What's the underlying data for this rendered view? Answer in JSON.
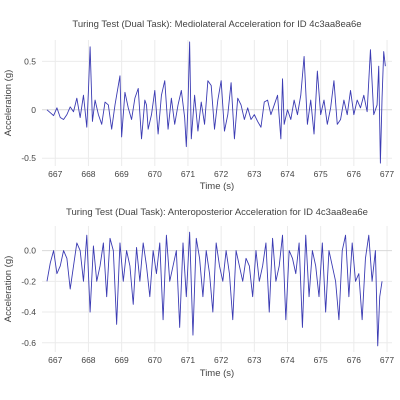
{
  "colors": {
    "line": "#3b3bb3",
    "grid": "#ebebeb",
    "text": "#444444"
  },
  "chart_data": [
    {
      "type": "line",
      "title": "Turing Test (Dual Task): Mediolateral Acceleration for ID 4c3aa8ea6e",
      "xlabel": "Time (s)",
      "ylabel": "Acceleration (g)",
      "xlim": [
        666.6,
        677.15
      ],
      "ylim": [
        -0.58,
        0.72
      ],
      "xticks": [
        667,
        668,
        669,
        670,
        671,
        672,
        673,
        674,
        675,
        676,
        677
      ],
      "yticks": [
        -0.5,
        0,
        0.5
      ],
      "grid": true,
      "legend": "none",
      "series": [
        {
          "x": [
            666.75,
            666.85,
            666.95,
            667.05,
            667.15,
            667.25,
            667.35,
            667.45,
            667.55,
            667.65,
            667.75,
            667.85,
            667.95,
            668.0,
            668.05,
            668.12,
            668.2,
            668.3,
            668.4,
            668.5,
            668.6,
            668.7,
            668.8,
            668.9,
            668.95,
            669.0,
            669.1,
            669.2,
            669.3,
            669.4,
            669.5,
            669.6,
            669.7,
            669.75,
            669.8,
            669.9,
            670.0,
            670.1,
            670.2,
            670.3,
            670.4,
            670.5,
            670.6,
            670.7,
            670.8,
            670.9,
            670.95,
            671.0,
            671.05,
            671.1,
            671.2,
            671.3,
            671.4,
            671.5,
            671.6,
            671.7,
            671.8,
            671.9,
            672.0,
            672.1,
            672.2,
            672.3,
            672.4,
            672.5,
            672.6,
            672.7,
            672.8,
            672.9,
            673.0,
            673.1,
            673.2,
            673.3,
            673.4,
            673.5,
            673.6,
            673.7,
            673.8,
            673.85,
            673.9,
            674.0,
            674.1,
            674.2,
            674.3,
            674.4,
            674.5,
            674.6,
            674.7,
            674.8,
            674.9,
            675.0,
            675.1,
            675.2,
            675.3,
            675.4,
            675.5,
            675.6,
            675.7,
            675.8,
            675.9,
            676.0,
            676.1,
            676.2,
            676.3,
            676.4,
            676.5,
            676.6,
            676.7,
            676.75,
            676.8,
            676.85,
            676.9,
            676.95
          ],
          "y": [
            0.0,
            -0.03,
            -0.06,
            0.02,
            -0.08,
            -0.1,
            -0.05,
            0.03,
            -0.02,
            0.12,
            -0.08,
            0.15,
            -0.18,
            0.2,
            0.65,
            -0.12,
            0.1,
            -0.05,
            -0.15,
            0.08,
            0.05,
            -0.2,
            0.05,
            0.25,
            0.35,
            -0.28,
            0.18,
            0.02,
            -0.1,
            0.12,
            0.22,
            -0.3,
            0.1,
            0.05,
            -0.2,
            -0.05,
            0.2,
            -0.25,
            0.15,
            0.3,
            -0.2,
            0.12,
            -0.15,
            0.05,
            0.2,
            -0.08,
            -0.38,
            0.05,
            0.7,
            -0.3,
            0.15,
            -0.22,
            0.08,
            -0.15,
            0.3,
            0.25,
            -0.2,
            0.1,
            0.3,
            -0.22,
            -0.05,
            0.28,
            -0.3,
            0.12,
            0.05,
            -0.1,
            0.02,
            -0.1,
            -0.05,
            -0.12,
            -0.18,
            0.08,
            0.1,
            -0.05,
            0.05,
            0.15,
            -0.3,
            0.32,
            -0.15,
            0.0,
            -0.1,
            0.1,
            -0.05,
            0.15,
            0.55,
            -0.15,
            0.1,
            -0.25,
            0.4,
            -0.05,
            0.1,
            -0.15,
            0.02,
            0.3,
            -0.15,
            -0.1,
            0.1,
            -0.05,
            0.2,
            -0.05,
            0.1,
            0.02,
            0.15,
            -0.02,
            0.62,
            -0.05,
            0.05,
            0.45,
            -0.55,
            0.12,
            0.6,
            0.45
          ]
        }
      ]
    },
    {
      "type": "line",
      "title": "Turing Test (Dual Task): Anteroposterior Acceleration for ID 4c3aa8ea6e",
      "xlabel": "Time (s)",
      "ylabel": "Acceleration (g)",
      "xlim": [
        666.6,
        677.15
      ],
      "ylim": [
        -0.66,
        0.16
      ],
      "xticks": [
        667,
        668,
        669,
        670,
        671,
        672,
        673,
        674,
        675,
        676,
        677
      ],
      "yticks": [
        -0.6,
        -0.4,
        -0.2,
        0.0
      ],
      "grid": true,
      "legend": "none",
      "series": [
        {
          "x": [
            666.75,
            666.85,
            666.95,
            667.05,
            667.15,
            667.25,
            667.35,
            667.45,
            667.55,
            667.65,
            667.75,
            667.85,
            667.95,
            668.05,
            668.15,
            668.25,
            668.35,
            668.45,
            668.55,
            668.65,
            668.75,
            668.85,
            668.95,
            669.05,
            669.15,
            669.25,
            669.35,
            669.45,
            669.55,
            669.65,
            669.75,
            669.85,
            669.95,
            670.05,
            670.15,
            670.25,
            670.35,
            670.45,
            670.55,
            670.65,
            670.75,
            670.85,
            670.95,
            671.05,
            671.15,
            671.25,
            671.35,
            671.45,
            671.55,
            671.65,
            671.75,
            671.85,
            671.95,
            672.05,
            672.15,
            672.25,
            672.35,
            672.45,
            672.55,
            672.65,
            672.75,
            672.85,
            672.95,
            673.05,
            673.15,
            673.25,
            673.35,
            673.45,
            673.55,
            673.65,
            673.75,
            673.85,
            673.95,
            674.05,
            674.15,
            674.25,
            674.35,
            674.45,
            674.55,
            674.65,
            674.75,
            674.85,
            674.95,
            675.05,
            675.15,
            675.25,
            675.35,
            675.45,
            675.55,
            675.65,
            675.75,
            675.85,
            675.95,
            676.05,
            676.15,
            676.25,
            676.35,
            676.45,
            676.55,
            676.65,
            676.72,
            676.78,
            676.85
          ],
          "y": [
            -0.2,
            -0.08,
            0.0,
            -0.15,
            -0.1,
            0.0,
            -0.05,
            -0.25,
            -0.1,
            0.05,
            0.0,
            -0.2,
            0.1,
            -0.4,
            0.03,
            -0.2,
            -0.1,
            0.05,
            -0.3,
            0.08,
            0.0,
            -0.48,
            0.05,
            -0.2,
            0.0,
            -0.1,
            -0.35,
            0.02,
            -0.2,
            0.05,
            -0.1,
            -0.3,
            0.0,
            -0.15,
            0.05,
            -0.45,
            0.1,
            -0.2,
            -0.1,
            0.0,
            -0.5,
            0.05,
            -0.3,
            0.12,
            -0.55,
            0.08,
            -0.05,
            -0.3,
            0.0,
            -0.15,
            -0.4,
            0.05,
            -0.1,
            -0.2,
            0.0,
            -0.15,
            -0.45,
            0.0,
            -0.1,
            -0.2,
            -0.05,
            -0.1,
            -0.3,
            0.0,
            -0.2,
            -0.1,
            0.05,
            -0.4,
            0.08,
            -0.2,
            -0.1,
            0.1,
            -0.45,
            0.0,
            -0.05,
            -0.15,
            0.05,
            -0.5,
            0.1,
            -0.3,
            0.0,
            -0.1,
            -0.3,
            0.05,
            -0.4,
            0.0,
            -0.1,
            -0.2,
            -0.45,
            0.0,
            0.1,
            -0.3,
            0.05,
            -0.2,
            -0.15,
            -0.45,
            -0.05,
            0.1,
            -0.2,
            0.0,
            -0.62,
            -0.3,
            -0.2
          ]
        }
      ]
    }
  ]
}
